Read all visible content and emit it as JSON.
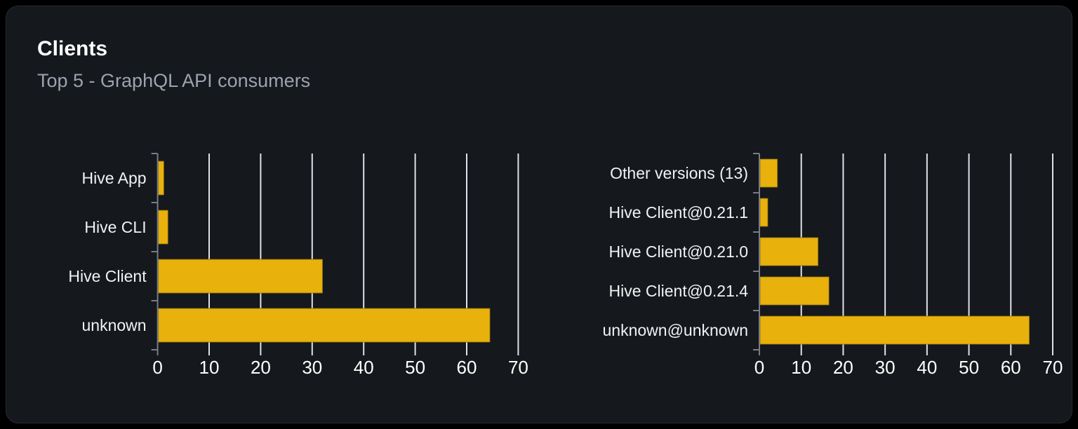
{
  "header": {
    "title": "Clients",
    "subtitle": "Top 5 - GraphQL API consumers"
  },
  "colors": {
    "page_background": "#000000",
    "card_background": "#15181c",
    "card_border": "#262b31",
    "bar": "#e8b10c",
    "bar_edge": "#8a6e0f",
    "grid": "#dde2e9",
    "axis": "#777c85",
    "category_label": "#f1f2f4",
    "tick_label": "#ffffff",
    "subtitle_text": "#9ca3af"
  },
  "chart_data": [
    {
      "type": "bar",
      "orientation": "horizontal",
      "name": "clients-by-name",
      "title": "",
      "categories": [
        "Hive App",
        "Hive CLI",
        "Hive Client",
        "unknown"
      ],
      "values": [
        1.2,
        2,
        32,
        64.5
      ],
      "xlabel": "",
      "ylabel": "",
      "xlim": [
        0,
        70
      ],
      "xticks": [
        0,
        10,
        20,
        30,
        40,
        50,
        60,
        70
      ],
      "grid": true,
      "legend": false
    },
    {
      "type": "bar",
      "orientation": "horizontal",
      "name": "clients-by-version",
      "title": "",
      "categories": [
        "Other versions (13)",
        "Hive Client@0.21.1",
        "Hive Client@0.21.0",
        "Hive Client@0.21.4",
        "unknown@unknown"
      ],
      "values": [
        4.3,
        2,
        14,
        16.6,
        64.4
      ],
      "xlabel": "",
      "ylabel": "",
      "xlim": [
        0,
        70
      ],
      "xticks": [
        0,
        10,
        20,
        30,
        40,
        50,
        60,
        70
      ],
      "grid": true,
      "legend": false
    }
  ]
}
